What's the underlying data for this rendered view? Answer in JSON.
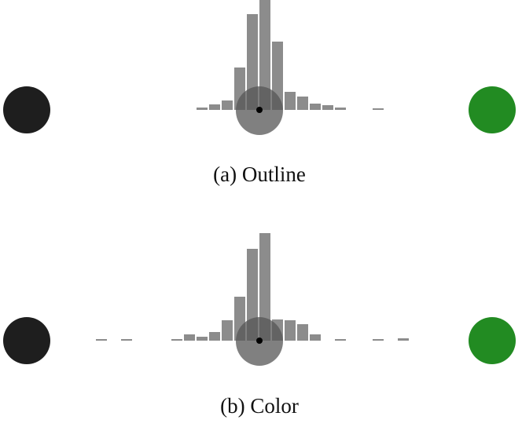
{
  "chart_data": [
    {
      "type": "bar",
      "caption": "(a) Outline",
      "color": "#8c8c8c",
      "values": [
        3,
        7,
        12,
        54,
        122,
        140,
        87,
        23,
        17,
        8,
        6,
        3,
        0,
        0,
        2
      ]
    },
    {
      "type": "bar",
      "caption": "(b) Color",
      "color": "#8c8c8c",
      "values": [
        2,
        0,
        2,
        0,
        0,
        0,
        2,
        8,
        5,
        11,
        26,
        56,
        117,
        137,
        27,
        26,
        21,
        8,
        0,
        2,
        0,
        0,
        2,
        0,
        3
      ]
    }
  ]
}
